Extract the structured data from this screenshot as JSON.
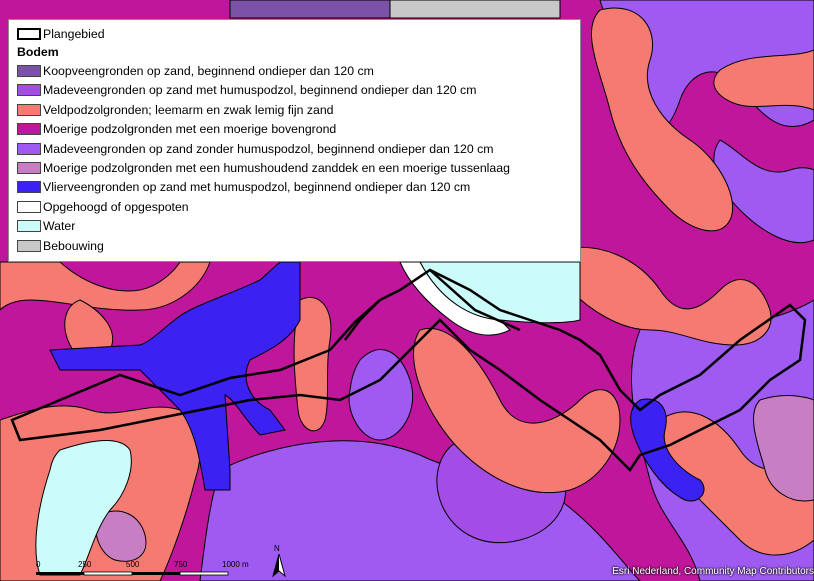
{
  "legend": {
    "boundary_label": "Plangebied",
    "heading": "Bodem",
    "items": [
      {
        "label": "Koopveengronden op zand, beginnend ondieper dan 120 cm",
        "color": "#7b52a8"
      },
      {
        "label": "Madeveengronden op zand met humuspodzol, beginnend ondieper dan 120 cm",
        "color": "#a34de6"
      },
      {
        "label": "Veldpodzolgronden; leemarm en zwak lemig fijn zand",
        "color": "#f47a72"
      },
      {
        "label": "Moerige podzolgronden met een moerige bovengrond",
        "color": "#c0169b"
      },
      {
        "label": "Madeveengronden op zand zonder humuspodzol, beginnend ondieper dan 120 cm",
        "color": "#9f5af2"
      },
      {
        "label": "Moerige podzolgronden met een humushoudend zanddek en een moerige tussenlaag",
        "color": "#c77ec3"
      },
      {
        "label": "Vlierveengronden op zand met humuspodzol, beginnend ondieper dan 120 cm",
        "color": "#3b22f2"
      },
      {
        "label": "Opgehoogd of opgespoten",
        "color": "#ffffff"
      },
      {
        "label": "Water",
        "color": "#ccfcfa"
      },
      {
        "label": "Bebouwing",
        "color": "#c8c8c8"
      }
    ]
  },
  "scalebar": {
    "ticks": [
      "0",
      "250",
      "500",
      "750",
      "1000 m"
    ]
  },
  "north_arrow": {
    "letter": "N"
  },
  "credit": "Esri Nederland, Community Map Contributors"
}
